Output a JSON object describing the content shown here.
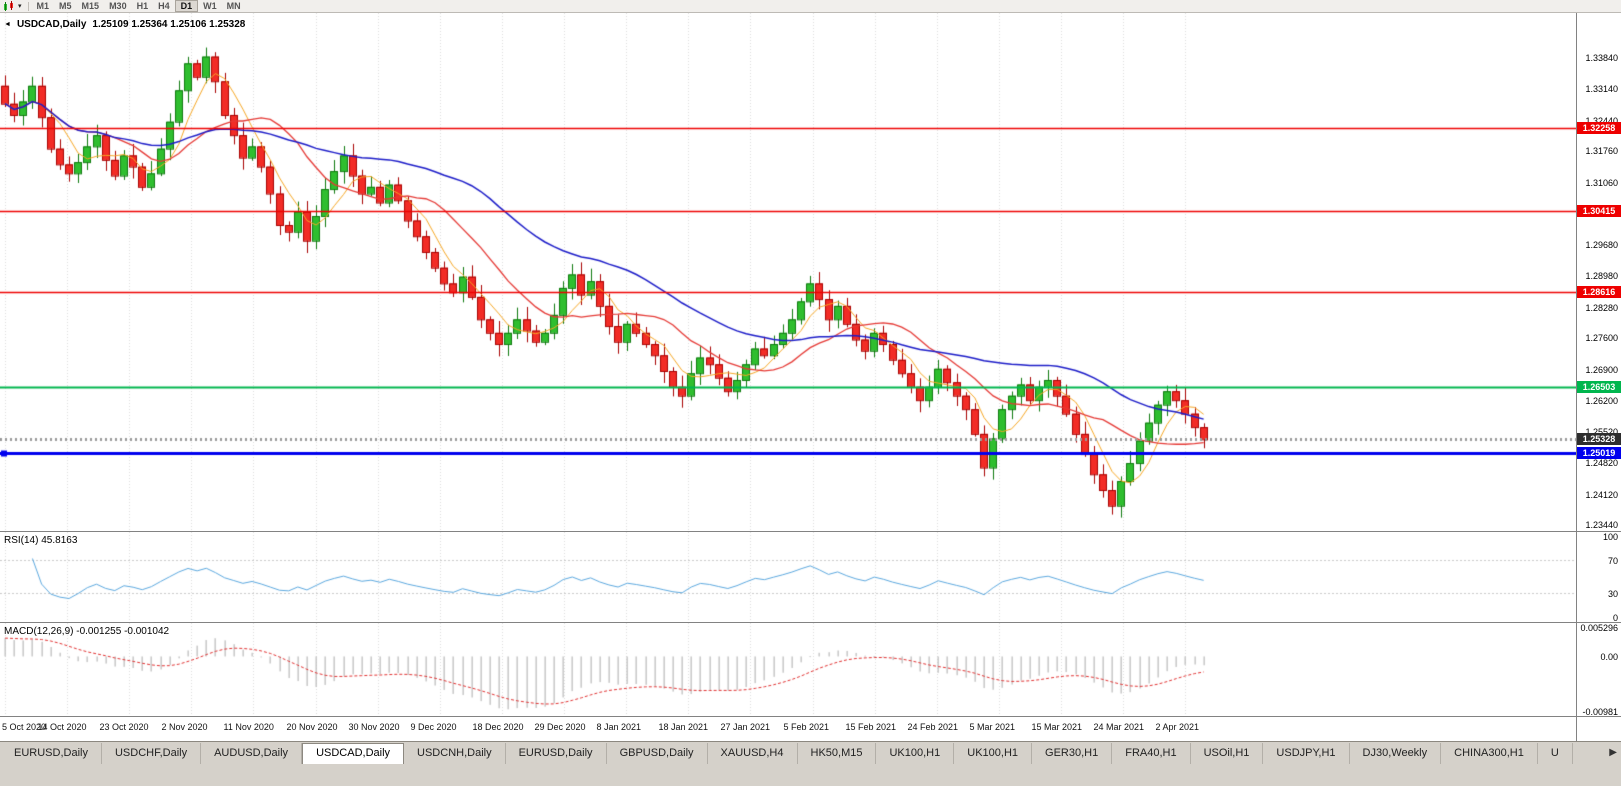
{
  "icons": {
    "collapse": "◄",
    "dropdown": "▾",
    "tab_scroll_right": "▶"
  },
  "toolbar": {
    "timeframes": [
      "M1",
      "M5",
      "M15",
      "M30",
      "H1",
      "H4",
      "D1",
      "W1",
      "MN"
    ],
    "active": "D1"
  },
  "chart": {
    "title_symbol": "USDCAD,Daily",
    "title_ohlc": "1.25109 1.25364 1.25106 1.25328",
    "price_max": 1.3482,
    "price_min": 1.2331,
    "price_axis": [
      "1.33840",
      "1.33140",
      "1.32440",
      "1.31760",
      "1.31060",
      "1.30360",
      "1.29680",
      "1.28980",
      "1.28280",
      "1.27600",
      "1.26900",
      "1.26200",
      "1.25520",
      "1.24820",
      "1.24120",
      "1.23440"
    ],
    "hlines": [
      {
        "price": 1.32258,
        "label": "1.32258",
        "color": "#EE0000",
        "width": 1.6
      },
      {
        "price": 1.30415,
        "label": "1.30415",
        "color": "#EE0000",
        "width": 1.6
      },
      {
        "price": 1.28616,
        "label": "1.28616",
        "color": "#EE0000",
        "width": 1.6
      },
      {
        "price": 1.26503,
        "label": "1.26503",
        "color": "#00B64E",
        "width": 1.8
      },
      {
        "price": 1.25019,
        "label": "1.25019",
        "color": "#0000EE",
        "width": 3,
        "marker": true
      }
    ],
    "current_price": {
      "value": 1.25328,
      "label": "1.25328"
    },
    "dates": [
      "5 Oct 2020",
      "14 Oct 2020",
      "23 Oct 2020",
      "2 Nov 2020",
      "11 Nov 2020",
      "20 Nov 2020",
      "30 Nov 2020",
      "9 Dec 2020",
      "18 Dec 2020",
      "29 Dec 2020",
      "8 Jan 2021",
      "18 Jan 2021",
      "27 Jan 2021",
      "5 Feb 2021",
      "15 Feb 2021",
      "24 Feb 2021",
      "5 Mar 2021",
      "15 Mar 2021",
      "24 Mar 2021",
      "2 Apr 2021"
    ]
  },
  "chart_data": {
    "type": "candlestick",
    "symbol": "USDCAD",
    "timeframe": "Daily",
    "last_bar": {
      "open": 1.25109,
      "high": 1.25364,
      "low": 1.25106,
      "close": 1.25328
    },
    "closes": [
      1.328,
      1.3255,
      1.3285,
      1.332,
      1.325,
      1.318,
      1.3145,
      1.3125,
      1.315,
      1.3185,
      1.321,
      1.3155,
      1.312,
      1.3165,
      1.314,
      1.3095,
      1.3125,
      1.318,
      1.324,
      1.331,
      1.337,
      1.334,
      1.3385,
      1.333,
      1.3255,
      1.321,
      1.316,
      1.3185,
      1.314,
      1.308,
      1.301,
      1.2995,
      1.304,
      1.2975,
      1.303,
      1.309,
      1.313,
      1.3165,
      1.312,
      1.308,
      1.3095,
      1.306,
      1.31,
      1.3065,
      1.302,
      1.2985,
      1.295,
      1.2915,
      1.288,
      1.286,
      1.2895,
      1.285,
      1.28,
      1.277,
      1.2745,
      1.277,
      1.28,
      1.2775,
      1.275,
      1.277,
      1.281,
      1.287,
      1.29,
      1.2855,
      1.2885,
      1.283,
      1.2785,
      1.275,
      1.279,
      1.277,
      1.2745,
      1.272,
      1.2685,
      1.265,
      1.263,
      1.268,
      1.2715,
      1.27,
      1.267,
      1.264,
      1.2665,
      1.27,
      1.2735,
      1.272,
      1.2745,
      1.277,
      1.28,
      1.284,
      1.288,
      1.2845,
      1.28,
      1.283,
      1.279,
      1.2755,
      1.273,
      1.277,
      1.2745,
      1.271,
      1.268,
      1.265,
      1.262,
      1.265,
      1.269,
      1.266,
      1.263,
      1.26,
      1.2545,
      1.247,
      1.2535,
      1.26,
      1.263,
      1.2655,
      1.262,
      1.265,
      1.2665,
      1.263,
      1.259,
      1.2545,
      1.25,
      1.2455,
      1.242,
      1.2385,
      1.244,
      1.248,
      1.253,
      1.257,
      1.261,
      1.264,
      1.262,
      1.259,
      1.256,
      1.25328
    ]
  },
  "rsi": {
    "label": "RSI(14) 45.8163",
    "period": 14,
    "levels": [
      {
        "value": 100,
        "label": "100"
      },
      {
        "value": 70,
        "label": "70"
      },
      {
        "value": 30,
        "label": "30"
      },
      {
        "value": 0,
        "label": "0"
      }
    ]
  },
  "macd": {
    "label": "MACD(12,26,9) -0.001255 -0.001042",
    "axis": [
      {
        "value": 0.005296,
        "label": "0.005296"
      },
      {
        "value": 0,
        "label": "0.00"
      },
      {
        "value": -0.00981,
        "label": "-0.00981"
      }
    ]
  },
  "tabs": {
    "items": [
      "EURUSD,Daily",
      "USDCHF,Daily",
      "AUDUSD,Daily",
      "USDCAD,Daily",
      "USDCNH,Daily",
      "EURUSD,Daily",
      "GBPUSD,Daily",
      "XAUUSD,H4",
      "HK50,M15",
      "UK100,H1",
      "UK100,H1",
      "GER30,H1",
      "FRA40,H1",
      "USOil,H1",
      "USDJPY,H1",
      "DJ30,Weekly",
      "CHINA300,H1",
      "U"
    ],
    "active_index": 3
  },
  "colors": {
    "up": "#2FBE2F",
    "up_edge": "#0E7A0E",
    "down": "#F22C26",
    "down_edge": "#A80000",
    "ma_fast": "#F5A623",
    "ma_mid": "#E53935",
    "ma_slow": "#1C1CC8",
    "rsi": "#5AA7DE",
    "macd_hist": "#BFBFBF",
    "macd_signal": "#E03030",
    "grid": "#DCDCDC",
    "current_line": "#9A9A9A",
    "current_tag_bg": "#2E2E2E"
  }
}
